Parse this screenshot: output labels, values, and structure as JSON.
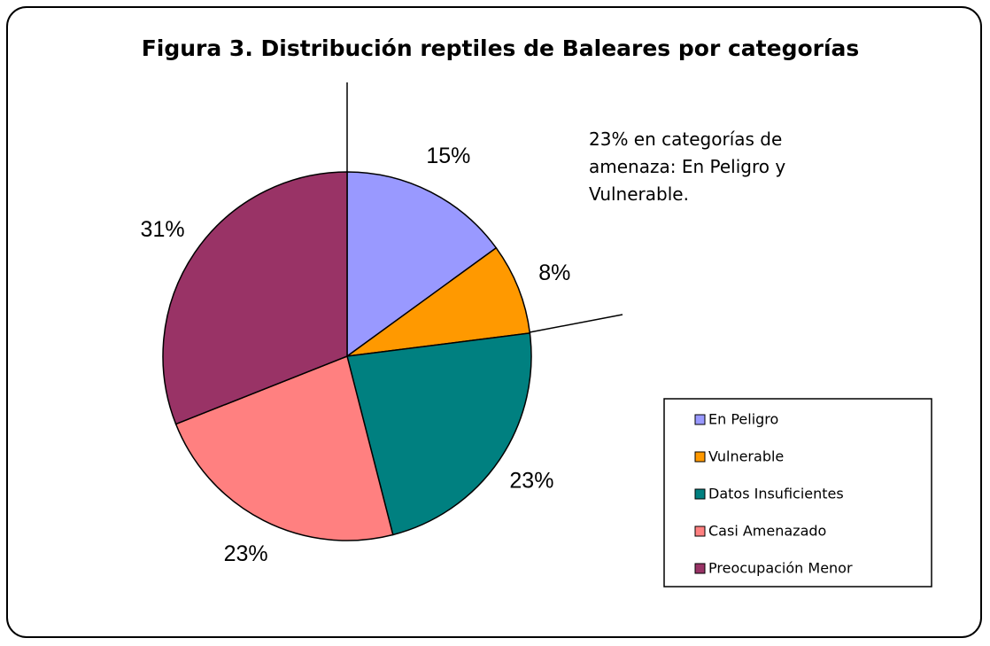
{
  "chart_data": {
    "type": "pie",
    "title": "Figura 3. Distribución reptiles de Baleares por categorías",
    "annotation": "23% en categorías de amenaza: En Peligro y Vulnerable.",
    "categories": [
      "En Peligro",
      "Vulnerable",
      "Datos Insuficientes",
      "Casi Amenazado",
      "Preocupación Menor"
    ],
    "values": [
      15,
      8,
      23,
      23,
      31
    ],
    "value_labels": [
      "15%",
      "8%",
      "23%",
      "23%",
      "31%"
    ],
    "colors": [
      "#9999ff",
      "#ff9900",
      "#008080",
      "#ff8080",
      "#993366"
    ],
    "legend": "right"
  }
}
